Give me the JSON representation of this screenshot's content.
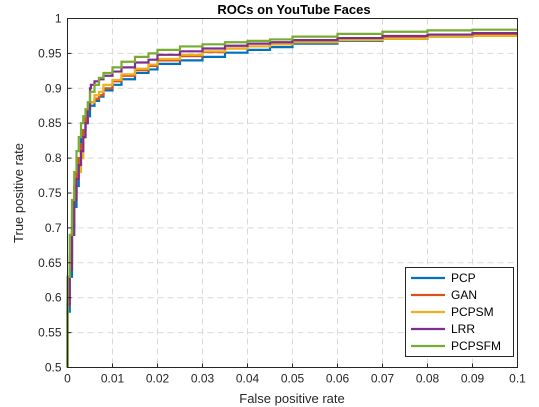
{
  "chart_data": {
    "type": "line",
    "title": "ROCs on YouTube Faces",
    "xlabel": "False positive rate",
    "ylabel": "True positive rate",
    "xlim": [
      0,
      0.1
    ],
    "ylim": [
      0.5,
      1
    ],
    "xticks": [
      0,
      0.01,
      0.02,
      0.03,
      0.04,
      0.05,
      0.06,
      0.07,
      0.08,
      0.09,
      0.1
    ],
    "yticks": [
      0.5,
      0.55,
      0.6,
      0.65,
      0.7,
      0.75,
      0.8,
      0.85,
      0.9,
      0.95,
      1
    ],
    "xtick_labels": [
      "0",
      "0.01",
      "0.02",
      "0.03",
      "0.04",
      "0.05",
      "0.06",
      "0.07",
      "0.08",
      "0.09",
      "0.1"
    ],
    "ytick_labels": [
      "0.5",
      "0.55",
      "0.6",
      "0.65",
      "0.7",
      "0.75",
      "0.8",
      "0.85",
      "0.9",
      "0.95",
      "1"
    ],
    "grid": true,
    "legend_position": "bottom-right",
    "series": [
      {
        "name": "PCP",
        "color": "#0072BD",
        "x": [
          0,
          0.0005,
          0.001,
          0.0015,
          0.002,
          0.0025,
          0.003,
          0.0035,
          0.004,
          0.0045,
          0.005,
          0.006,
          0.007,
          0.008,
          0.01,
          0.012,
          0.015,
          0.018,
          0.02,
          0.025,
          0.03,
          0.035,
          0.04,
          0.045,
          0.05,
          0.06,
          0.07,
          0.08,
          0.09,
          0.1
        ],
        "y": [
          0.5,
          0.58,
          0.63,
          0.7,
          0.73,
          0.76,
          0.8,
          0.83,
          0.84,
          0.85,
          0.86,
          0.875,
          0.882,
          0.888,
          0.897,
          0.905,
          0.913,
          0.922,
          0.927,
          0.935,
          0.94,
          0.945,
          0.951,
          0.955,
          0.959,
          0.964,
          0.968,
          0.971,
          0.974,
          0.976
        ]
      },
      {
        "name": "GAN",
        "color": "#D95319",
        "x": [
          0,
          0.0005,
          0.001,
          0.0015,
          0.002,
          0.0025,
          0.003,
          0.0035,
          0.004,
          0.0045,
          0.005,
          0.006,
          0.007,
          0.008,
          0.01,
          0.012,
          0.015,
          0.018,
          0.02,
          0.025,
          0.03,
          0.035,
          0.04,
          0.045,
          0.05,
          0.06,
          0.07,
          0.08,
          0.09,
          0.1
        ],
        "y": [
          0.5,
          0.6,
          0.66,
          0.72,
          0.76,
          0.78,
          0.8,
          0.82,
          0.84,
          0.86,
          0.87,
          0.88,
          0.885,
          0.89,
          0.9,
          0.91,
          0.918,
          0.926,
          0.932,
          0.94,
          0.946,
          0.952,
          0.957,
          0.96,
          0.963,
          0.967,
          0.97,
          0.973,
          0.975,
          0.977
        ]
      },
      {
        "name": "PCPSM",
        "color": "#EDB120",
        "x": [
          0,
          0.0005,
          0.001,
          0.0015,
          0.002,
          0.0025,
          0.003,
          0.0035,
          0.004,
          0.0045,
          0.005,
          0.006,
          0.007,
          0.008,
          0.01,
          0.012,
          0.015,
          0.018,
          0.02,
          0.025,
          0.03,
          0.035,
          0.04,
          0.045,
          0.05,
          0.06,
          0.07,
          0.08,
          0.09,
          0.1
        ],
        "y": [
          0.5,
          0.59,
          0.65,
          0.71,
          0.75,
          0.77,
          0.78,
          0.8,
          0.83,
          0.85,
          0.87,
          0.88,
          0.89,
          0.895,
          0.905,
          0.912,
          0.92,
          0.928,
          0.934,
          0.942,
          0.948,
          0.953,
          0.957,
          0.96,
          0.963,
          0.966,
          0.969,
          0.971,
          0.974,
          0.975
        ]
      },
      {
        "name": "LRR",
        "color": "#7E2F8E",
        "x": [
          0,
          0.0005,
          0.001,
          0.0015,
          0.002,
          0.0025,
          0.003,
          0.0035,
          0.004,
          0.0045,
          0.005,
          0.0052,
          0.006,
          0.007,
          0.008,
          0.01,
          0.012,
          0.015,
          0.018,
          0.02,
          0.025,
          0.03,
          0.035,
          0.04,
          0.045,
          0.05,
          0.06,
          0.07,
          0.08,
          0.09,
          0.1
        ],
        "y": [
          0.5,
          0.59,
          0.64,
          0.69,
          0.74,
          0.77,
          0.79,
          0.81,
          0.83,
          0.85,
          0.87,
          0.9,
          0.905,
          0.91,
          0.913,
          0.918,
          0.924,
          0.93,
          0.937,
          0.941,
          0.948,
          0.953,
          0.957,
          0.961,
          0.964,
          0.966,
          0.969,
          0.972,
          0.975,
          0.977,
          0.979
        ]
      },
      {
        "name": "PCPSFM",
        "color": "#77AC30",
        "x": [
          0,
          0.0005,
          0.001,
          0.0015,
          0.002,
          0.0025,
          0.003,
          0.0035,
          0.004,
          0.0045,
          0.005,
          0.006,
          0.007,
          0.008,
          0.01,
          0.012,
          0.015,
          0.018,
          0.02,
          0.025,
          0.03,
          0.035,
          0.04,
          0.045,
          0.05,
          0.06,
          0.07,
          0.08,
          0.09,
          0.1
        ],
        "y": [
          0.5,
          0.63,
          0.69,
          0.74,
          0.78,
          0.81,
          0.83,
          0.85,
          0.86,
          0.87,
          0.88,
          0.895,
          0.905,
          0.915,
          0.922,
          0.93,
          0.938,
          0.945,
          0.95,
          0.955,
          0.96,
          0.963,
          0.966,
          0.968,
          0.97,
          0.974,
          0.978,
          0.981,
          0.983,
          0.984
        ]
      }
    ]
  }
}
